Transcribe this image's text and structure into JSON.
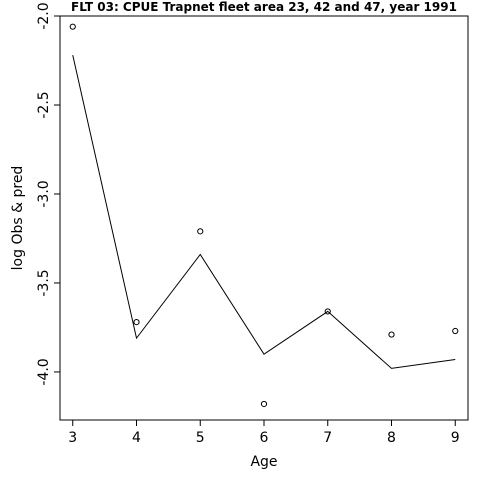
{
  "chart_data": {
    "type": "line",
    "title": "FLT 03: CPUE Trapnet fleet area 23, 42 and 47, year 1991",
    "xlabel": "Age",
    "ylabel": "log Obs & pred",
    "x": [
      3,
      4,
      5,
      6,
      7,
      8,
      9
    ],
    "series": [
      {
        "kind": "points",
        "values": [
          -2.06,
          -3.72,
          -3.21,
          -4.18,
          -3.66,
          -3.79,
          -3.77
        ]
      },
      {
        "kind": "line",
        "values": [
          -2.22,
          -3.81,
          -3.34,
          -3.9,
          -3.66,
          -3.98,
          -3.93
        ]
      }
    ],
    "xlim": [
      2.8,
      9.2
    ],
    "ylim": [
      -4.27,
      -2.0
    ],
    "xticks": [
      3,
      4,
      5,
      6,
      7,
      8,
      9
    ],
    "yticks": [
      -4.0,
      -3.5,
      -3.0,
      -2.5,
      -2.0
    ],
    "ytick_labels": [
      "-4.0",
      "-3.5",
      "-3.0",
      "-2.5",
      "-2.0"
    ],
    "grid": false,
    "legend": "none"
  }
}
